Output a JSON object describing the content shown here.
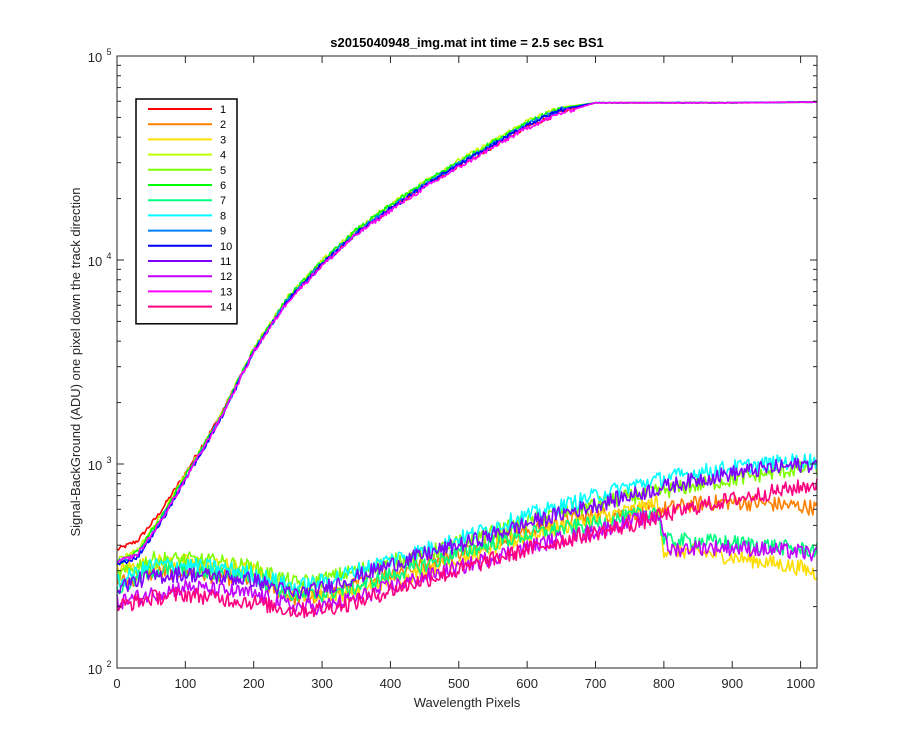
{
  "chart_data": {
    "type": "line",
    "title": "s2015040948_img.mat int time = 2.5 sec   BS1",
    "xlabel": "Wavelength Pixels",
    "ylabel": "Signal-BackGround (ADU) one pixel down the track direction",
    "xlim": [
      0,
      1024
    ],
    "ylim": [
      100,
      100000
    ],
    "yscale": "log",
    "xticks": [
      0,
      100,
      200,
      300,
      400,
      500,
      600,
      700,
      800,
      900,
      1000
    ],
    "xtick_labels": [
      "0",
      "100",
      "200",
      "300",
      "400",
      "500",
      "600",
      "700",
      "800",
      "900",
      "1000"
    ],
    "yticks": [
      {
        "value": 100,
        "base": "10",
        "exp": "2"
      },
      {
        "value": 1000,
        "base": "10",
        "exp": "3"
      },
      {
        "value": 10000,
        "base": "10",
        "exp": "4"
      },
      {
        "value": 100000,
        "base": "10",
        "exp": "5"
      }
    ],
    "grid": false,
    "legend_position": "top-left",
    "series": [
      {
        "name": "1",
        "color": "#ff0000",
        "group": "high",
        "values": [
          [
            0,
            380
          ],
          [
            30,
            420
          ],
          [
            60,
            560
          ],
          [
            100,
            900
          ],
          [
            150,
            1700
          ],
          [
            200,
            3600
          ],
          [
            250,
            6400
          ],
          [
            300,
            9500
          ],
          [
            350,
            13500
          ],
          [
            400,
            17800
          ],
          [
            450,
            23000
          ],
          [
            500,
            29000
          ],
          [
            550,
            36000
          ],
          [
            600,
            45000
          ],
          [
            650,
            53000
          ],
          [
            700,
            59000
          ],
          [
            800,
            59000
          ],
          [
            900,
            59000
          ],
          [
            1024,
            59500
          ]
        ]
      },
      {
        "name": "2",
        "color": "#ff8000",
        "group": "low",
        "values": [
          [
            0,
            260
          ],
          [
            50,
            290
          ],
          [
            100,
            300
          ],
          [
            150,
            280
          ],
          [
            200,
            270
          ],
          [
            260,
            220
          ],
          [
            300,
            225
          ],
          [
            350,
            255
          ],
          [
            400,
            290
          ],
          [
            450,
            320
          ],
          [
            500,
            370
          ],
          [
            550,
            420
          ],
          [
            600,
            470
          ],
          [
            650,
            520
          ],
          [
            700,
            560
          ],
          [
            750,
            580
          ],
          [
            800,
            600
          ],
          [
            850,
            640
          ],
          [
            900,
            650
          ],
          [
            950,
            640
          ],
          [
            1000,
            620
          ],
          [
            1024,
            610
          ]
        ]
      },
      {
        "name": "3",
        "color": "#ffdd00",
        "group": "low",
        "values": [
          [
            0,
            300
          ],
          [
            50,
            330
          ],
          [
            100,
            330
          ],
          [
            150,
            320
          ],
          [
            200,
            300
          ],
          [
            250,
            240
          ],
          [
            300,
            225
          ],
          [
            350,
            240
          ],
          [
            400,
            270
          ],
          [
            450,
            300
          ],
          [
            500,
            340
          ],
          [
            550,
            390
          ],
          [
            600,
            440
          ],
          [
            650,
            490
          ],
          [
            700,
            540
          ],
          [
            760,
            600
          ],
          [
            790,
            650
          ],
          [
            800,
            380
          ],
          [
            850,
            370
          ],
          [
            900,
            350
          ],
          [
            950,
            330
          ],
          [
            1000,
            310
          ],
          [
            1024,
            290
          ]
        ]
      },
      {
        "name": "4",
        "color": "#bfff00",
        "group": "high",
        "values": [
          [
            0,
            340
          ],
          [
            30,
            380
          ],
          [
            60,
            530
          ],
          [
            100,
            880
          ],
          [
            150,
            1680
          ],
          [
            200,
            3700
          ],
          [
            250,
            6600
          ],
          [
            300,
            9900
          ],
          [
            350,
            14100
          ],
          [
            400,
            18700
          ],
          [
            450,
            24300
          ],
          [
            500,
            30700
          ],
          [
            550,
            38200
          ],
          [
            600,
            48000
          ],
          [
            650,
            56000
          ],
          [
            700,
            59000
          ],
          [
            800,
            59000
          ],
          [
            900,
            59000
          ],
          [
            1024,
            59500
          ]
        ]
      },
      {
        "name": "5",
        "color": "#80ff00",
        "group": "low",
        "values": [
          [
            0,
            280
          ],
          [
            50,
            340
          ],
          [
            100,
            340
          ],
          [
            150,
            330
          ],
          [
            200,
            310
          ],
          [
            260,
            260
          ],
          [
            300,
            270
          ],
          [
            350,
            300
          ],
          [
            400,
            330
          ],
          [
            450,
            360
          ],
          [
            500,
            410
          ],
          [
            550,
            460
          ],
          [
            600,
            520
          ],
          [
            650,
            580
          ],
          [
            700,
            630
          ],
          [
            750,
            690
          ],
          [
            800,
            740
          ],
          [
            850,
            790
          ],
          [
            900,
            840
          ],
          [
            950,
            900
          ],
          [
            1000,
            950
          ],
          [
            1024,
            960
          ]
        ]
      },
      {
        "name": "6",
        "color": "#00ff00",
        "group": "high",
        "values": [
          [
            0,
            320
          ],
          [
            30,
            370
          ],
          [
            60,
            520
          ],
          [
            100,
            870
          ],
          [
            150,
            1660
          ],
          [
            200,
            3660
          ],
          [
            250,
            6550
          ],
          [
            300,
            9800
          ],
          [
            350,
            14000
          ],
          [
            400,
            18500
          ],
          [
            450,
            24000
          ],
          [
            500,
            30300
          ],
          [
            550,
            37800
          ],
          [
            600,
            47500
          ],
          [
            650,
            55500
          ],
          [
            700,
            59000
          ],
          [
            800,
            59000
          ],
          [
            900,
            59000
          ],
          [
            1024,
            59500
          ]
        ]
      },
      {
        "name": "7",
        "color": "#00ff80",
        "group": "low",
        "values": [
          [
            0,
            240
          ],
          [
            50,
            300
          ],
          [
            100,
            300
          ],
          [
            150,
            290
          ],
          [
            200,
            280
          ],
          [
            260,
            225
          ],
          [
            300,
            230
          ],
          [
            350,
            250
          ],
          [
            400,
            285
          ],
          [
            450,
            320
          ],
          [
            500,
            365
          ],
          [
            550,
            410
          ],
          [
            600,
            450
          ],
          [
            650,
            480
          ],
          [
            700,
            510
          ],
          [
            760,
            560
          ],
          [
            790,
            600
          ],
          [
            800,
            420
          ],
          [
            850,
            420
          ],
          [
            900,
            410
          ],
          [
            950,
            400
          ],
          [
            1000,
            380
          ],
          [
            1024,
            380
          ]
        ]
      },
      {
        "name": "8",
        "color": "#00ffff",
        "group": "low",
        "values": [
          [
            0,
            260
          ],
          [
            50,
            320
          ],
          [
            100,
            320
          ],
          [
            150,
            310
          ],
          [
            200,
            290
          ],
          [
            260,
            250
          ],
          [
            300,
            265
          ],
          [
            350,
            300
          ],
          [
            400,
            340
          ],
          [
            450,
            380
          ],
          [
            500,
            430
          ],
          [
            550,
            490
          ],
          [
            600,
            560
          ],
          [
            650,
            620
          ],
          [
            700,
            700
          ],
          [
            750,
            780
          ],
          [
            800,
            850
          ],
          [
            850,
            910
          ],
          [
            900,
            960
          ],
          [
            950,
            1000
          ],
          [
            1000,
            1040
          ],
          [
            1024,
            1040
          ]
        ]
      },
      {
        "name": "9",
        "color": "#0080ff",
        "group": "high",
        "values": [
          [
            0,
            330
          ],
          [
            30,
            360
          ],
          [
            60,
            500
          ],
          [
            100,
            850
          ],
          [
            150,
            1640
          ],
          [
            200,
            3580
          ],
          [
            250,
            6400
          ],
          [
            300,
            9600
          ],
          [
            350,
            13700
          ],
          [
            400,
            18100
          ],
          [
            450,
            23400
          ],
          [
            500,
            29600
          ],
          [
            550,
            37000
          ],
          [
            600,
            46500
          ],
          [
            650,
            54800
          ],
          [
            700,
            59000
          ],
          [
            800,
            59000
          ],
          [
            900,
            59000
          ],
          [
            1024,
            59500
          ]
        ]
      },
      {
        "name": "10",
        "color": "#0000ff",
        "group": "high",
        "values": [
          [
            0,
            320
          ],
          [
            30,
            350
          ],
          [
            60,
            490
          ],
          [
            100,
            840
          ],
          [
            150,
            1620
          ],
          [
            200,
            3550
          ],
          [
            250,
            6350
          ],
          [
            300,
            9500
          ],
          [
            350,
            13500
          ],
          [
            400,
            17900
          ],
          [
            450,
            23100
          ],
          [
            500,
            29200
          ],
          [
            550,
            36500
          ],
          [
            600,
            46000
          ],
          [
            650,
            54500
          ],
          [
            700,
            59000
          ],
          [
            800,
            59000
          ],
          [
            900,
            59000
          ],
          [
            1024,
            59500
          ]
        ]
      },
      {
        "name": "11",
        "color": "#8000ff",
        "group": "low",
        "values": [
          [
            0,
            250
          ],
          [
            50,
            280
          ],
          [
            100,
            290
          ],
          [
            150,
            280
          ],
          [
            200,
            270
          ],
          [
            260,
            230
          ],
          [
            300,
            245
          ],
          [
            350,
            280
          ],
          [
            400,
            320
          ],
          [
            450,
            360
          ],
          [
            500,
            400
          ],
          [
            550,
            450
          ],
          [
            600,
            510
          ],
          [
            650,
            570
          ],
          [
            700,
            630
          ],
          [
            750,
            700
          ],
          [
            800,
            770
          ],
          [
            850,
            840
          ],
          [
            900,
            900
          ],
          [
            950,
            950
          ],
          [
            1000,
            990
          ],
          [
            1024,
            1000
          ]
        ]
      },
      {
        "name": "12",
        "color": "#bf00ff",
        "group": "low",
        "values": [
          [
            0,
            210
          ],
          [
            50,
            230
          ],
          [
            100,
            250
          ],
          [
            150,
            240
          ],
          [
            200,
            230
          ],
          [
            260,
            200
          ],
          [
            300,
            200
          ],
          [
            350,
            220
          ],
          [
            400,
            250
          ],
          [
            450,
            280
          ],
          [
            500,
            310
          ],
          [
            550,
            350
          ],
          [
            600,
            390
          ],
          [
            650,
            430
          ],
          [
            700,
            470
          ],
          [
            760,
            530
          ],
          [
            795,
            560
          ],
          [
            805,
            380
          ],
          [
            850,
            390
          ],
          [
            900,
            390
          ],
          [
            950,
            380
          ],
          [
            1000,
            370
          ],
          [
            1024,
            360
          ]
        ]
      },
      {
        "name": "13",
        "color": "#ff00ff",
        "group": "high",
        "values": [
          [
            0,
            330
          ],
          [
            30,
            360
          ],
          [
            60,
            500
          ],
          [
            100,
            840
          ],
          [
            150,
            1640
          ],
          [
            200,
            3550
          ],
          [
            250,
            6300
          ],
          [
            300,
            9400
          ],
          [
            350,
            13300
          ],
          [
            400,
            17500
          ],
          [
            450,
            22600
          ],
          [
            500,
            28500
          ],
          [
            550,
            35600
          ],
          [
            600,
            44500
          ],
          [
            650,
            52500
          ],
          [
            700,
            59000
          ],
          [
            800,
            59000
          ],
          [
            900,
            59000
          ],
          [
            1024,
            59500
          ]
        ]
      },
      {
        "name": "14",
        "color": "#ff0080",
        "group": "low",
        "values": [
          [
            0,
            200
          ],
          [
            50,
            220
          ],
          [
            100,
            230
          ],
          [
            150,
            220
          ],
          [
            200,
            210
          ],
          [
            260,
            190
          ],
          [
            300,
            195
          ],
          [
            350,
            210
          ],
          [
            400,
            240
          ],
          [
            450,
            270
          ],
          [
            500,
            300
          ],
          [
            550,
            340
          ],
          [
            600,
            380
          ],
          [
            650,
            420
          ],
          [
            700,
            460
          ],
          [
            750,
            500
          ],
          [
            800,
            560
          ],
          [
            850,
            620
          ],
          [
            900,
            670
          ],
          [
            950,
            720
          ],
          [
            1000,
            770
          ],
          [
            1024,
            800
          ]
        ]
      }
    ]
  }
}
